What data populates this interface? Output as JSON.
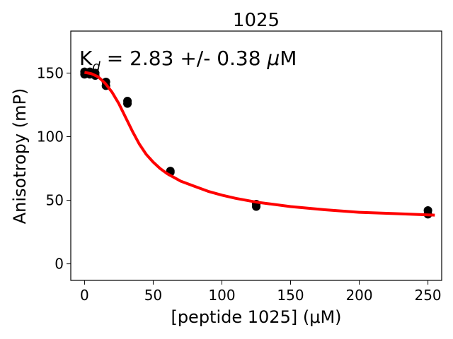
{
  "chart_data": {
    "type": "scatter",
    "title": "1025",
    "xlabel": "[peptide 1025] (μM)",
    "ylabel": "Anisotropy (mP)",
    "annotation": {
      "kd_prefix": "K",
      "kd_subscript": "d",
      "kd_text": " = 2.83 +/- 0.38 ",
      "kd_unit_mu": "μ",
      "kd_unit": "M"
    },
    "xlim": [
      -10,
      260
    ],
    "ylim": [
      -13,
      183
    ],
    "xticks": [
      0,
      50,
      100,
      150,
      200,
      250
    ],
    "yticks": [
      0,
      50,
      100,
      150
    ],
    "grid": false,
    "series": [
      {
        "kind": "scatter",
        "color": "#000000",
        "points": [
          [
            0,
            151
          ],
          [
            0,
            149
          ],
          [
            3.9,
            151
          ],
          [
            3.9,
            149
          ],
          [
            7.8,
            150
          ],
          [
            7.8,
            148
          ],
          [
            15.6,
            143
          ],
          [
            15.6,
            140
          ],
          [
            31.25,
            128
          ],
          [
            31.25,
            126
          ],
          [
            62.5,
            73
          ],
          [
            62.5,
            72
          ],
          [
            125,
            47
          ],
          [
            125,
            45
          ],
          [
            250,
            42
          ],
          [
            250,
            39
          ]
        ]
      },
      {
        "kind": "fit",
        "color": "#ff0000",
        "points": [
          [
            0,
            150.5
          ],
          [
            5,
            149.5
          ],
          [
            10,
            147
          ],
          [
            15,
            142
          ],
          [
            20,
            135
          ],
          [
            25,
            126
          ],
          [
            30,
            115
          ],
          [
            35,
            104
          ],
          [
            40,
            94
          ],
          [
            45,
            86
          ],
          [
            50,
            80
          ],
          [
            55,
            75
          ],
          [
            60,
            71
          ],
          [
            65,
            68
          ],
          [
            70,
            65
          ],
          [
            75,
            63
          ],
          [
            80,
            61
          ],
          [
            90,
            57
          ],
          [
            100,
            54
          ],
          [
            110,
            51.5
          ],
          [
            125,
            48.5
          ],
          [
            150,
            45
          ],
          [
            175,
            42.5
          ],
          [
            200,
            40.5
          ],
          [
            225,
            39.5
          ],
          [
            250,
            38.5
          ],
          [
            255,
            38.3
          ]
        ]
      }
    ]
  }
}
